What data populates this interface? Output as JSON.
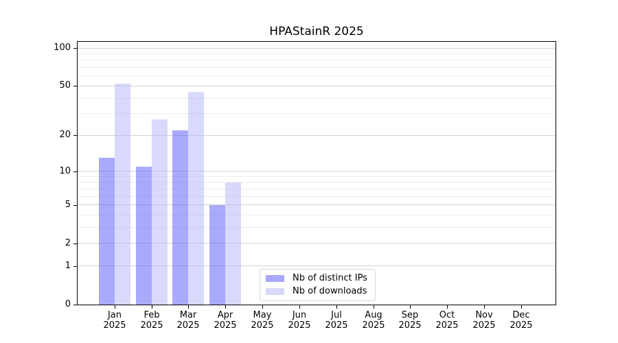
{
  "figure": {
    "title": "HPAStainR 2025",
    "background": "#ffffff"
  },
  "legend": {
    "items": [
      {
        "label": "Nb of distinct IPs",
        "color": "#a9a9fa"
      },
      {
        "label": "Nb of downloads",
        "color": "#d9d9fb"
      }
    ],
    "position": "inside lower center"
  },
  "chart_data": {
    "type": "bar",
    "title": "HPAStainR 2025",
    "categories": [
      "Jan",
      "Feb",
      "Mar",
      "Apr",
      "May",
      "Jun",
      "Jul",
      "Aug",
      "Sep",
      "Oct",
      "Nov",
      "Dec"
    ],
    "year_label": "2025",
    "series": [
      {
        "name": "Nb of distinct IPs",
        "color": "#a9a9fa",
        "fill": "rgba(85,85,245,0.5)",
        "values": [
          13,
          11,
          22,
          5,
          0,
          0,
          0,
          0,
          0,
          0,
          0,
          0
        ]
      },
      {
        "name": "Nb of downloads",
        "color": "#d9d9fb",
        "fill": "rgba(179,179,247,0.5)",
        "values": [
          52,
          27,
          45,
          8,
          0,
          0,
          0,
          0,
          0,
          0,
          0,
          0
        ]
      }
    ],
    "xlabel": "",
    "ylabel": "",
    "yscale": "log1p",
    "ylim": [
      0,
      100
    ],
    "y_ticks": [
      0,
      1,
      2,
      5,
      10,
      20,
      50,
      100
    ],
    "y_minor_gridlines": [
      3,
      4,
      6,
      7,
      8,
      9,
      30,
      40,
      60,
      70,
      80,
      90
    ],
    "grid": "horizontal",
    "frame": "box",
    "axis_color": "#000000",
    "major_grid_color": "#d3d3d3",
    "minor_grid_color": "#ececec"
  }
}
